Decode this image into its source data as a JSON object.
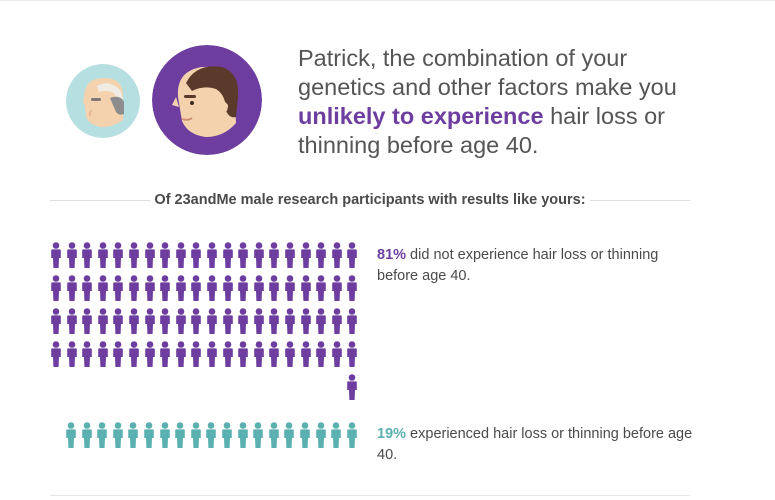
{
  "headline": {
    "before": "Patrick, the combination of your genetics and other factors make you ",
    "emphasis": "unlikely to experience",
    "after": " hair loss or thinning before age 40."
  },
  "section_caption": "Of 23andMe male research participants with results like yours:",
  "stats": {
    "no_loss": {
      "percent": "81%",
      "text": " did not experience hair loss or thinning before age 40.",
      "count": 81
    },
    "loss": {
      "percent": "19%",
      "text": " experienced hair loss or thinning before age 40.",
      "count": 19
    }
  },
  "colors": {
    "purple": "#6d3ea0",
    "teal": "#5bb0b0",
    "old_avatar_bg": "#b5dfe0",
    "young_avatar_bg": "#6d3ea0"
  },
  "icons": {
    "older_person": "older-man-avatar-icon",
    "younger_person": "younger-man-avatar-icon",
    "person": "person-icon"
  }
}
